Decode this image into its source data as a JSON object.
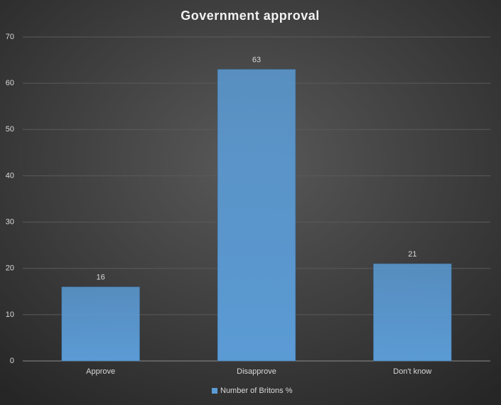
{
  "chart_data": {
    "type": "bar",
    "title": "Government approval",
    "categories": [
      "Approve",
      "Disapprove",
      "Don't know"
    ],
    "series": [
      {
        "name": "Number of Britons %",
        "color": "#5b9bd5",
        "values": [
          16,
          63,
          21
        ]
      }
    ],
    "ylim": [
      0,
      70
    ],
    "yticks": [
      0,
      10,
      20,
      30,
      40,
      50,
      60,
      70
    ],
    "grid": true,
    "legend": "bottom",
    "data_labels": true
  }
}
